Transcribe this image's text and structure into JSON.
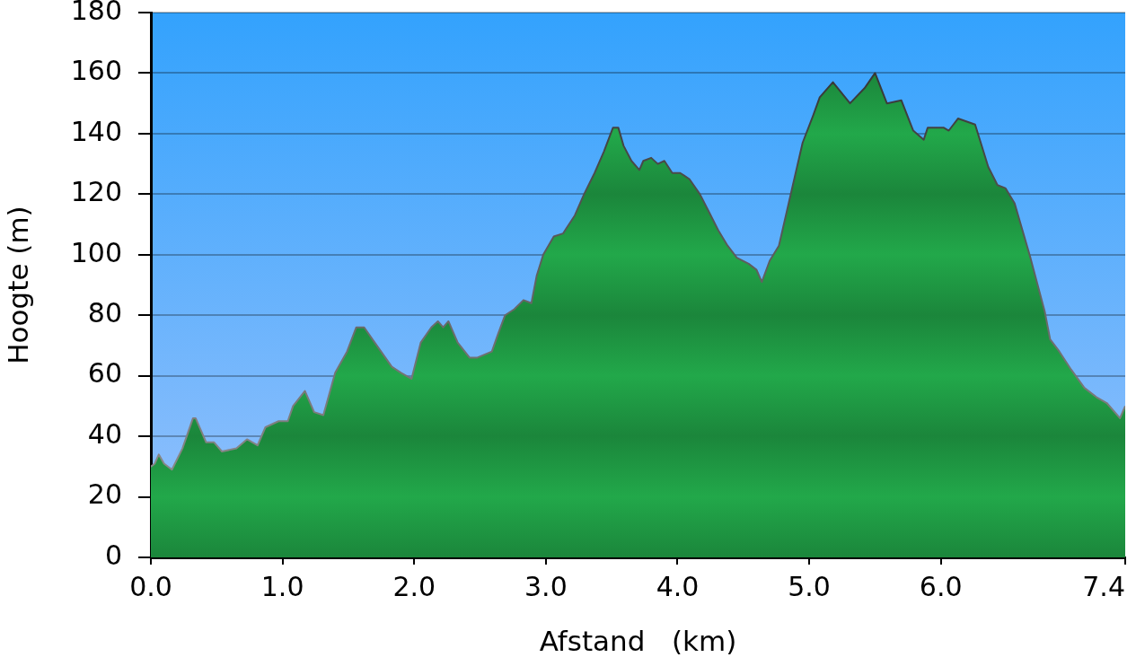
{
  "chart_data": {
    "type": "area",
    "xlabel": "Afstand   (km)",
    "ylabel": "Hoogte (m)",
    "x": [
      0,
      0.03,
      0.06,
      0.1,
      0.16,
      0.24,
      0.32,
      0.34,
      0.42,
      0.48,
      0.54,
      0.65,
      0.73,
      0.81,
      0.87,
      0.97,
      1.04,
      1.08,
      1.17,
      1.24,
      1.31,
      1.4,
      1.49,
      1.56,
      1.62,
      1.7,
      1.83,
      1.9,
      1.98,
      2.05,
      2.13,
      2.18,
      2.22,
      2.26,
      2.33,
      2.42,
      2.48,
      2.59,
      2.63,
      2.69,
      2.76,
      2.83,
      2.89,
      2.93,
      2.98,
      3.06,
      3.13,
      3.22,
      3.29,
      3.37,
      3.44,
      3.51,
      3.55,
      3.59,
      3.65,
      3.71,
      3.74,
      3.8,
      3.85,
      3.9,
      3.96,
      4.02,
      4.09,
      4.17,
      4.24,
      4.31,
      4.38,
      4.45,
      4.54,
      4.6,
      4.64,
      4.7,
      4.77,
      4.86,
      4.95,
      5.03,
      5.08,
      5.18,
      5.31,
      5.42,
      5.5,
      5.59,
      5.7,
      5.79,
      5.87,
      5.9,
      6.02,
      6.06,
      6.13,
      6.26,
      6.36,
      6.43,
      6.49,
      6.56,
      6.68,
      6.79,
      6.83,
      6.9,
      6.99,
      7.09,
      7.18,
      7.26,
      7.36,
      7.4
    ],
    "values": [
      30,
      31,
      34,
      31,
      29,
      36,
      46,
      46,
      38,
      38,
      35,
      36,
      39,
      37,
      43,
      45,
      45,
      50,
      55,
      48,
      47,
      61,
      68,
      76,
      76,
      71,
      63,
      61,
      59,
      71,
      76,
      78,
      76,
      78,
      71,
      66,
      66,
      68,
      73,
      80,
      82,
      85,
      84,
      93,
      100,
      106,
      107,
      113,
      120,
      127,
      134,
      142,
      142,
      136,
      131,
      128,
      131,
      132,
      130,
      131,
      127,
      127,
      125,
      120,
      114,
      108,
      103,
      99,
      97,
      95,
      91,
      98,
      103,
      120,
      137,
      146,
      152,
      157,
      150,
      155,
      160,
      150,
      151,
      141,
      138,
      142,
      142,
      141,
      145,
      143,
      129,
      123,
      122,
      117,
      99,
      81,
      72,
      68,
      62,
      56,
      53,
      51,
      46,
      50
    ],
    "color": "#22a84a",
    "xlim": [
      0,
      7.4
    ],
    "ylim": [
      0,
      180
    ],
    "xticks": [
      {
        "value": 0,
        "label": "0.0"
      },
      {
        "value": 1,
        "label": "1.0"
      },
      {
        "value": 2,
        "label": "2.0"
      },
      {
        "value": 3,
        "label": "3.0"
      },
      {
        "value": 4,
        "label": "4.0"
      },
      {
        "value": 5,
        "label": "5.0"
      },
      {
        "value": 6,
        "label": "6.0"
      },
      7.4
    ],
    "yticks": [
      0,
      20,
      40,
      60,
      80,
      100,
      120,
      140,
      160,
      180
    ],
    "grid": "y"
  }
}
